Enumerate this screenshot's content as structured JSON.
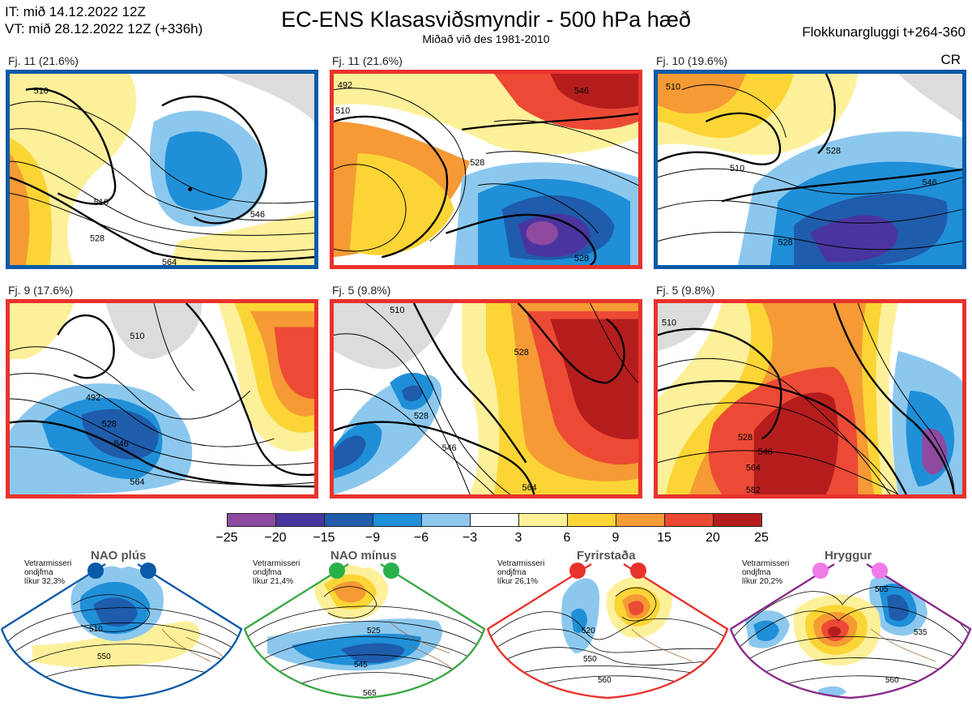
{
  "header": {
    "init_time": "IT: mið 14.12.2022 12Z",
    "valid_time": "VT: mið 28.12.2022 12Z  (+336h)",
    "title": "EC-ENS Klasasviðsmyndir - 500 hPa hæð",
    "subtitle": "Miðað við des 1981-2010",
    "window": "Flokkunargluggi t+264-360",
    "cr": "CR"
  },
  "clusters": [
    {
      "label": "Fj. 11 (21.6%)",
      "border": "#0a5aa8",
      "contours": [
        "510",
        "528",
        "546",
        "564",
        "510"
      ]
    },
    {
      "label": "Fj. 11 (21.6%)",
      "border": "#e8322c",
      "contours": [
        "492",
        "510",
        "528",
        "546",
        "528"
      ]
    },
    {
      "label": "Fj. 10 (19.6%)",
      "border": "#0a5aa8",
      "contours": [
        "510",
        "528",
        "546",
        "528",
        "510"
      ]
    },
    {
      "label": "Fj. 9 (17.6%)",
      "border": "#e8322c",
      "contours": [
        "510",
        "528",
        "546",
        "564",
        "492"
      ]
    },
    {
      "label": "Fj. 5 (9.8%)",
      "border": "#e8322c",
      "contours": [
        "528",
        "546",
        "564",
        "510",
        "528"
      ]
    },
    {
      "label": "Fj. 5 (9.8%)",
      "border": "#e8322c",
      "contours": [
        "510",
        "528",
        "546",
        "564",
        "582"
      ]
    }
  ],
  "colorbar": {
    "ticks": [
      "−25",
      "−20",
      "−15",
      "−9",
      "−6",
      "−3",
      "3",
      "6",
      "9",
      "15",
      "20",
      "25"
    ],
    "colors": [
      "#8e4a9e",
      "#4a35a0",
      "#1f5cab",
      "#1f8fd8",
      "#8cc8ee",
      "#ffffff",
      "#fdf09a",
      "#fbd535",
      "#f59a35",
      "#ec4a35",
      "#b51d1d"
    ]
  },
  "regimes": [
    {
      "title": "NAO plús",
      "line1": "Vetrarmisseri",
      "line2": "ondjfma",
      "line3": "líkur 32,3%",
      "color": "#0a5aa8",
      "dot": "#0a5aa8",
      "c1": "510",
      "c2": "550"
    },
    {
      "title": "NAO mínus",
      "line1": "Vetrarmisseri",
      "line2": "ondjfma",
      "line3": "líkur 21,4%",
      "color": "#3aa845",
      "dot": "#28b04a",
      "c1": "525",
      "c2": "545",
      "c3": "565"
    },
    {
      "title": "Fyrirstaða",
      "line1": "Vetrarmisseri",
      "line2": "ondjfma",
      "line3": "líkur 26,1%",
      "color": "#e8322c",
      "dot": "#e8322c",
      "c1": "520",
      "c2": "550",
      "c3": "560"
    },
    {
      "title": "Hryggur",
      "line1": "Vetrarmisseri",
      "line2": "ondjfma",
      "line3": "líkur 20,2%",
      "color": "#8a2a8a",
      "dot": "#f07ae8",
      "c1": "505",
      "c2": "535",
      "c3": "560"
    }
  ]
}
